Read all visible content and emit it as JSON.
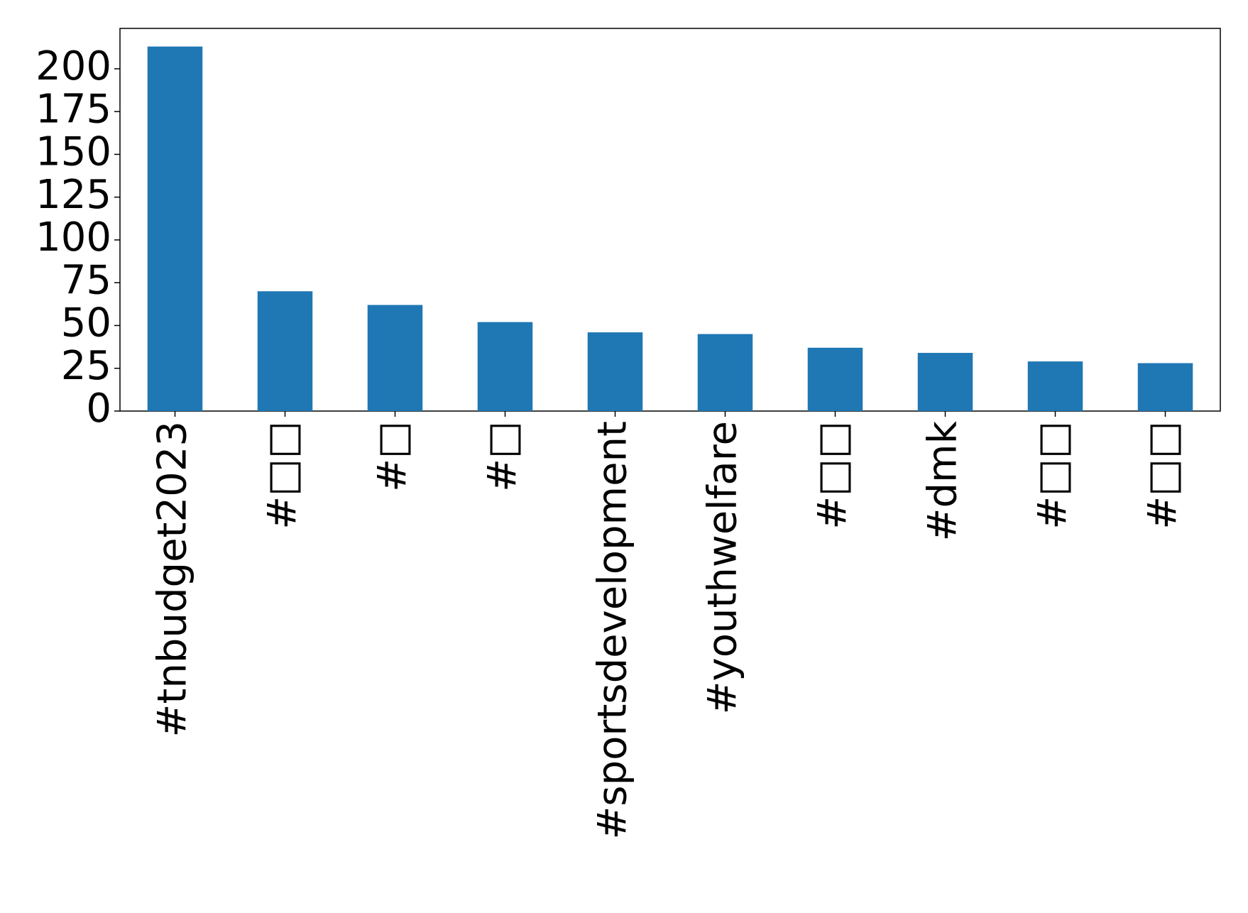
{
  "chart_data": {
    "type": "bar",
    "categories": [
      "#tnbudget2023",
      "#□□",
      "#□",
      "#□",
      "#sportsdevelopment",
      "#youthwelfare",
      "#□□",
      "#dmk",
      "#□□",
      "#□□"
    ],
    "values": [
      213,
      70,
      62,
      52,
      46,
      45,
      37,
      34,
      29,
      28
    ],
    "color": "#1f77b4",
    "ylim": [
      0,
      223.6
    ],
    "yticks": [
      0,
      25,
      50,
      75,
      100,
      125,
      150,
      175,
      200
    ],
    "grid": false
  }
}
